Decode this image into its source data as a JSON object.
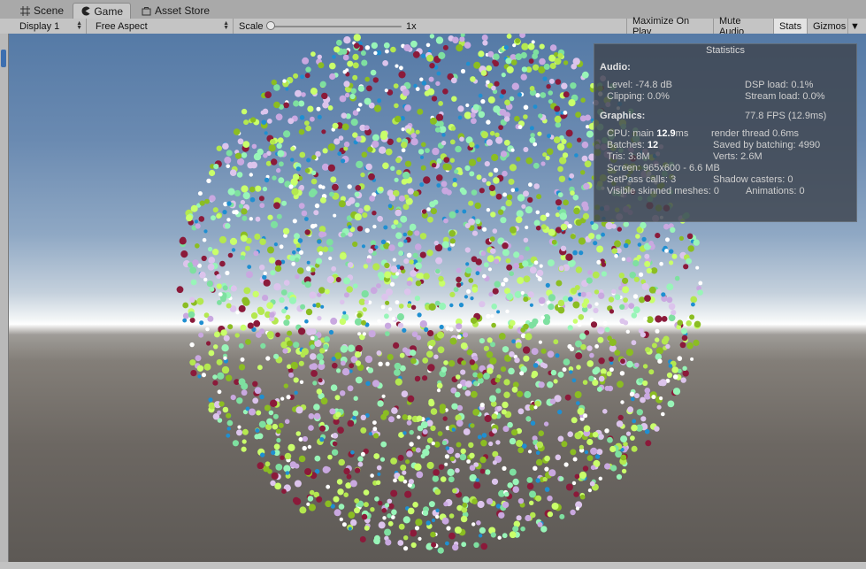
{
  "tabs": [
    {
      "label": "Scene",
      "icon": "grid-icon"
    },
    {
      "label": "Game",
      "icon": "pacman-icon"
    },
    {
      "label": "Asset Store",
      "icon": "shopping-bag-icon"
    }
  ],
  "toolbar": {
    "display": "Display 1",
    "aspect": "Free Aspect",
    "scale_label": "Scale",
    "scale_value": "1x",
    "buttons": [
      "Maximize On Play",
      "Mute Audio",
      "Stats",
      "Gizmos"
    ]
  },
  "stats": {
    "title": "Statistics",
    "audio_header": "Audio:",
    "level": "Level: -74.8 dB",
    "dsp_load": "DSP load: 0.1%",
    "clipping": "Clipping: 0.0%",
    "stream_load": "Stream load: 0.0%",
    "graphics_header": "Graphics:",
    "fps": "77.8 FPS (12.9ms)",
    "cpu_main_label": "CPU: main ",
    "cpu_main_value": "12.9",
    "cpu_main_unit": "ms",
    "render_thread": "render thread 0.6ms",
    "batches_label": "Batches: ",
    "batches_value": "12",
    "saved_by_batching": "Saved by batching: 4990",
    "tris": "Tris: 3.8M",
    "verts": "Verts: 2.6M",
    "screen": "Screen: 965x600 - 6.6 MB",
    "setpass": "SetPass calls: 3",
    "shadow_casters": "Shadow casters: 0",
    "skinned_meshes": "Visible skinned meshes: 0",
    "animations": "Animations: 0"
  },
  "scene": {
    "particle_colors": [
      "#c9ff6b",
      "#b4e84f",
      "#8bbd22",
      "#dcc4ec",
      "#c9a8e0",
      "#98f5b8",
      "#7ee0a0",
      "#1f8fd1",
      "#8b1a3a",
      "#ffffff"
    ]
  }
}
